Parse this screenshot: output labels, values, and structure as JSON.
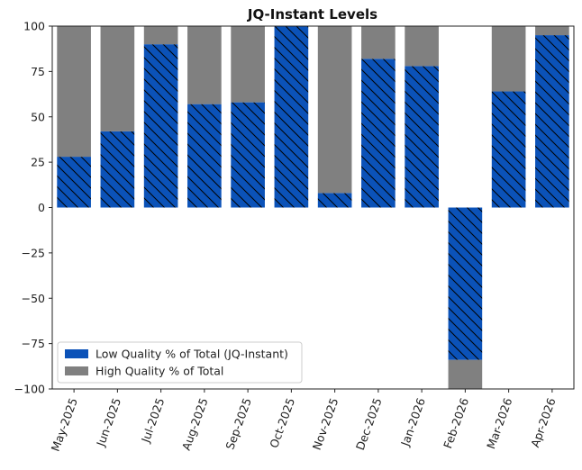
{
  "chart_data": {
    "type": "bar",
    "stacked": true,
    "title": "JQ-Instant Levels",
    "xlabel": "",
    "ylabel": "",
    "ylim": [
      -100,
      100
    ],
    "yticks": [
      100,
      75,
      50,
      25,
      0,
      -25,
      -50,
      -75,
      -100
    ],
    "categories": [
      "May-2025",
      "Jun-2025",
      "Jul-2025",
      "Aug-2025",
      "Sep-2025",
      "Oct-2025",
      "Nov-2025",
      "Dec-2025",
      "Jan-2026",
      "Feb-2026",
      "Mar-2026",
      "Apr-2026"
    ],
    "series": [
      {
        "name": "Low Quality % of Total (JQ-Instant)",
        "color": "#0b52b8",
        "hatch": "diagonal",
        "values": [
          28,
          42,
          90,
          57,
          58,
          100,
          8,
          82,
          78,
          -84,
          64,
          95
        ]
      },
      {
        "name": "High Quality % of Total",
        "color": "#808080",
        "values": [
          72,
          58,
          10,
          43,
          42,
          0,
          92,
          18,
          22,
          -16,
          36,
          5
        ]
      }
    ],
    "legend_position": "lower-left",
    "grid": false
  }
}
